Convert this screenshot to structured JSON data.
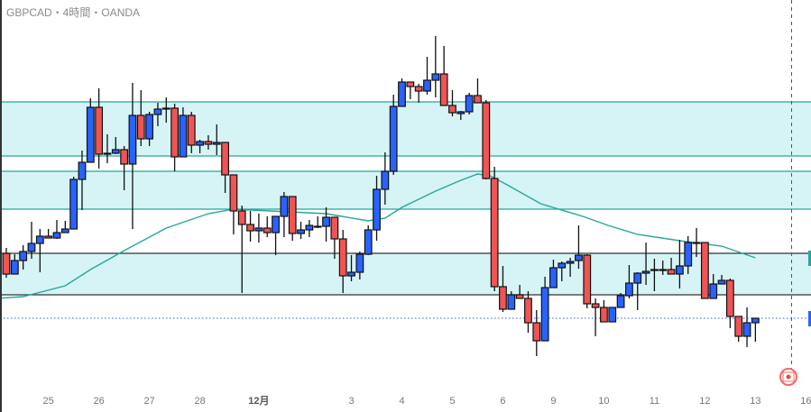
{
  "header": {
    "title": "GBPCAD・4時間・OANDA"
  },
  "colors": {
    "up": "#2962ff",
    "down": "#f05454",
    "ma": "#26a69a",
    "zone_fill": "#d6f4f6",
    "zone_line_teal": "#26a69a",
    "zone_line_dark": "#333333",
    "price_line": "#2962ff"
  },
  "icons": {
    "flag": "canada-flag-icon"
  },
  "chart_data": {
    "type": "candlestick",
    "title": "GBPCAD・4時間・OANDA",
    "ylabel": "",
    "xlabel": "",
    "note": "price axis not shown; values in relative price units",
    "ylim": [
      0,
      457
    ],
    "x_ticks": [
      {
        "index": 5,
        "label": "25"
      },
      {
        "index": 11,
        "label": "26"
      },
      {
        "index": 17,
        "label": "27"
      },
      {
        "index": 23,
        "label": "28"
      },
      {
        "index": 30,
        "label": "12月",
        "bold": true
      },
      {
        "index": 41,
        "label": "3"
      },
      {
        "index": 47,
        "label": "4"
      },
      {
        "index": 53,
        "label": "5"
      },
      {
        "index": 59,
        "label": "6"
      },
      {
        "index": 65,
        "label": "9"
      },
      {
        "index": 71,
        "label": "10"
      },
      {
        "index": 77,
        "label": "11"
      },
      {
        "index": 83,
        "label": "12"
      },
      {
        "index": 89,
        "label": "13"
      },
      {
        "index": 95,
        "label": "16"
      }
    ],
    "ohlc": [
      [
        176,
        182,
        149,
        153
      ],
      [
        153,
        175,
        153,
        168
      ],
      [
        168,
        185,
        158,
        178
      ],
      [
        178,
        211,
        170,
        187
      ],
      [
        187,
        203,
        155,
        195
      ],
      [
        195,
        203,
        193,
        193
      ],
      [
        193,
        213,
        192,
        199
      ],
      [
        199,
        212,
        199,
        203
      ],
      [
        203,
        261,
        203,
        258
      ],
      [
        258,
        290,
        224,
        277
      ],
      [
        277,
        348,
        277,
        338
      ],
      [
        338,
        359,
        270,
        286
      ],
      [
        287,
        308,
        276,
        286
      ],
      [
        287,
        305,
        286,
        291
      ],
      [
        291,
        295,
        246,
        275
      ],
      [
        275,
        365,
        203,
        329
      ],
      [
        329,
        357,
        295,
        303
      ],
      [
        303,
        333,
        295,
        330
      ],
      [
        330,
        343,
        317,
        336
      ],
      [
        337,
        349,
        321,
        337
      ],
      [
        337,
        342,
        267,
        283
      ],
      [
        283,
        338,
        283,
        329
      ],
      [
        329,
        333,
        287,
        296
      ],
      [
        296,
        302,
        287,
        300
      ],
      [
        300,
        307,
        291,
        297
      ],
      [
        297,
        319,
        285,
        299
      ],
      [
        299,
        299,
        243,
        263
      ],
      [
        263,
        263,
        197,
        223
      ],
      [
        223,
        229,
        132,
        208
      ],
      [
        208,
        223,
        189,
        201
      ],
      [
        201,
        220,
        188,
        204
      ],
      [
        204,
        217,
        194,
        199
      ],
      [
        199,
        217,
        174,
        217
      ],
      [
        217,
        244,
        194,
        239
      ],
      [
        239,
        239,
        190,
        198
      ],
      [
        198,
        211,
        192,
        202
      ],
      [
        202,
        213,
        194,
        207
      ],
      [
        206,
        217,
        204,
        206
      ],
      [
        206,
        227,
        189,
        216
      ],
      [
        216,
        216,
        170,
        192
      ],
      [
        192,
        202,
        132,
        151
      ],
      [
        151,
        174,
        145,
        155
      ],
      [
        155,
        178,
        147,
        175
      ],
      [
        175,
        207,
        174,
        202
      ],
      [
        202,
        262,
        190,
        247
      ],
      [
        247,
        288,
        230,
        267
      ],
      [
        267,
        352,
        263,
        339
      ],
      [
        339,
        370,
        339,
        366
      ],
      [
        366,
        366,
        347,
        361
      ],
      [
        361,
        364,
        343,
        356
      ],
      [
        356,
        394,
        352,
        368
      ],
      [
        368,
        417,
        349,
        375
      ],
      [
        375,
        406,
        340,
        340
      ],
      [
        340,
        357,
        328,
        332
      ],
      [
        331,
        334,
        324,
        333
      ],
      [
        333,
        354,
        330,
        351
      ],
      [
        351,
        370,
        343,
        343
      ],
      [
        343,
        346,
        258,
        259
      ],
      [
        259,
        272,
        134,
        139
      ],
      [
        139,
        162,
        111,
        114
      ],
      [
        114,
        134,
        114,
        130
      ],
      [
        130,
        141,
        126,
        126
      ],
      [
        126,
        134,
        88,
        99
      ],
      [
        99,
        113,
        62,
        79
      ],
      [
        79,
        150,
        79,
        138
      ],
      [
        138,
        169,
        138,
        160
      ],
      [
        160,
        167,
        145,
        165
      ],
      [
        165,
        171,
        150,
        167
      ],
      [
        168,
        207,
        159,
        174
      ],
      [
        174,
        175,
        115,
        120
      ],
      [
        120,
        126,
        84,
        116
      ],
      [
        116,
        124,
        100,
        100
      ],
      [
        100,
        116,
        100,
        116
      ],
      [
        116,
        132,
        116,
        129
      ],
      [
        129,
        163,
        126,
        143
      ],
      [
        143,
        155,
        113,
        154
      ],
      [
        154,
        188,
        141,
        156
      ],
      [
        158,
        170,
        134,
        158
      ],
      [
        158,
        168,
        152,
        158
      ],
      [
        158,
        171,
        153,
        153
      ],
      [
        153,
        191,
        137,
        162
      ],
      [
        162,
        195,
        153,
        188
      ],
      [
        188,
        204,
        172,
        188
      ],
      [
        188,
        188,
        126,
        126
      ],
      [
        126,
        153,
        126,
        142
      ],
      [
        142,
        152,
        142,
        146
      ],
      [
        146,
        148,
        93,
        106
      ],
      [
        106,
        106,
        78,
        84
      ],
      [
        84,
        116,
        72,
        99
      ],
      [
        99,
        104,
        78,
        104
      ]
    ],
    "moving_average": [
      [
        -1,
        126
      ],
      [
        2,
        128
      ],
      [
        7,
        140
      ],
      [
        10,
        158
      ],
      [
        14,
        179
      ],
      [
        19,
        204
      ],
      [
        24,
        220
      ],
      [
        27,
        225
      ],
      [
        38,
        220
      ],
      [
        43,
        212
      ],
      [
        45,
        215
      ],
      [
        47,
        227
      ],
      [
        51,
        245
      ],
      [
        54,
        257
      ],
      [
        56,
        264
      ],
      [
        57.5,
        262
      ],
      [
        59.5,
        252
      ],
      [
        63.5,
        231
      ],
      [
        68.5,
        217
      ],
      [
        71.5,
        207
      ],
      [
        75,
        197
      ],
      [
        80,
        190
      ],
      [
        85,
        184
      ],
      [
        89,
        171
      ]
    ],
    "zones": [
      {
        "top": 344,
        "bottom": 284,
        "line": "teal"
      },
      {
        "top": 267,
        "bottom": 225,
        "line": "teal"
      },
      {
        "top": 176,
        "bottom": 130,
        "line": "dark"
      }
    ],
    "current_price": 104,
    "future_marker_index": 93.3
  }
}
